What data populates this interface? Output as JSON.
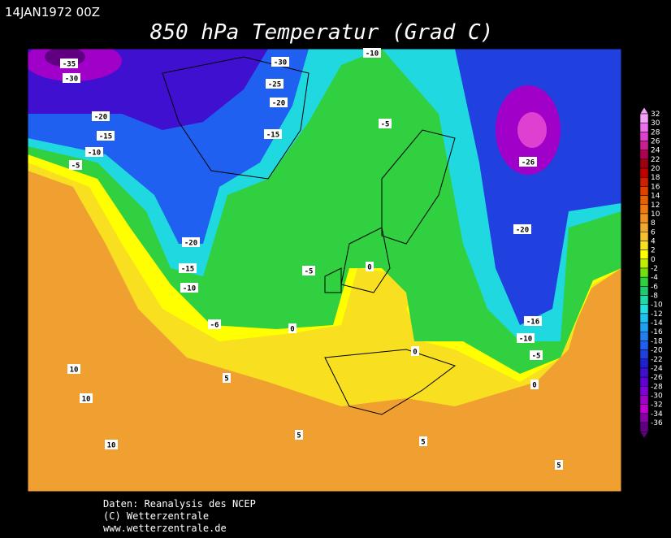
{
  "header": {
    "date": "14JAN1972 00Z",
    "title": "850 hPa Temperatur (Grad C)"
  },
  "colorbar": {
    "levels": [
      {
        "label": "32",
        "color": "#f4a0f4"
      },
      {
        "label": "30",
        "color": "#ec70ec"
      },
      {
        "label": "28",
        "color": "#e040d0"
      },
      {
        "label": "26",
        "color": "#c82090"
      },
      {
        "label": "24",
        "color": "#b00050"
      },
      {
        "label": "22",
        "color": "#a00010"
      },
      {
        "label": "20",
        "color": "#c00000"
      },
      {
        "label": "18",
        "color": "#d02000"
      },
      {
        "label": "16",
        "color": "#e04000"
      },
      {
        "label": "14",
        "color": "#e86000"
      },
      {
        "label": "12",
        "color": "#f07810"
      },
      {
        "label": "10",
        "color": "#f09020"
      },
      {
        "label": "8",
        "color": "#f0a830"
      },
      {
        "label": "6",
        "color": "#f4c030"
      },
      {
        "label": "4",
        "color": "#f8e020"
      },
      {
        "label": "2",
        "color": "#ffff00"
      },
      {
        "label": "0",
        "color": "#c0f000"
      },
      {
        "label": "-2",
        "color": "#70e010"
      },
      {
        "label": "-4",
        "color": "#30d040"
      },
      {
        "label": "-6",
        "color": "#20c870"
      },
      {
        "label": "-8",
        "color": "#20d8a8"
      },
      {
        "label": "-10",
        "color": "#20e0e0"
      },
      {
        "label": "-12",
        "color": "#20c0f0"
      },
      {
        "label": "-14",
        "color": "#20a0f0"
      },
      {
        "label": "-16",
        "color": "#2080f0"
      },
      {
        "label": "-18",
        "color": "#2060f0"
      },
      {
        "label": "-20",
        "color": "#2040e0"
      },
      {
        "label": "-22",
        "color": "#2020d0"
      },
      {
        "label": "-24",
        "color": "#4010d0"
      },
      {
        "label": "-26",
        "color": "#6000d8"
      },
      {
        "label": "-28",
        "color": "#8000d8"
      },
      {
        "label": "-30",
        "color": "#a000c8"
      },
      {
        "label": "-32",
        "color": "#c000d0"
      },
      {
        "label": "-34",
        "color": "#8800a8"
      },
      {
        "label": "-36",
        "color": "#600080"
      }
    ]
  },
  "map": {
    "contour_labels": [
      "-35",
      "-30",
      "-30",
      "-25",
      "-20",
      "-10",
      "-5",
      "-20",
      "-15",
      "-10",
      "-5",
      "-15",
      "-26",
      "-20",
      "-20",
      "-15",
      "-10",
      "-5",
      "0",
      "-6",
      "0",
      "-16",
      "-10",
      "-5",
      "0",
      "0",
      "5",
      "10",
      "10",
      "10",
      "5",
      "5",
      "5"
    ]
  },
  "footer": {
    "lines": [
      "Daten: Reanalysis des NCEP",
      "(C) Wetterzentrale",
      "www.wetterzentrale.de"
    ]
  }
}
